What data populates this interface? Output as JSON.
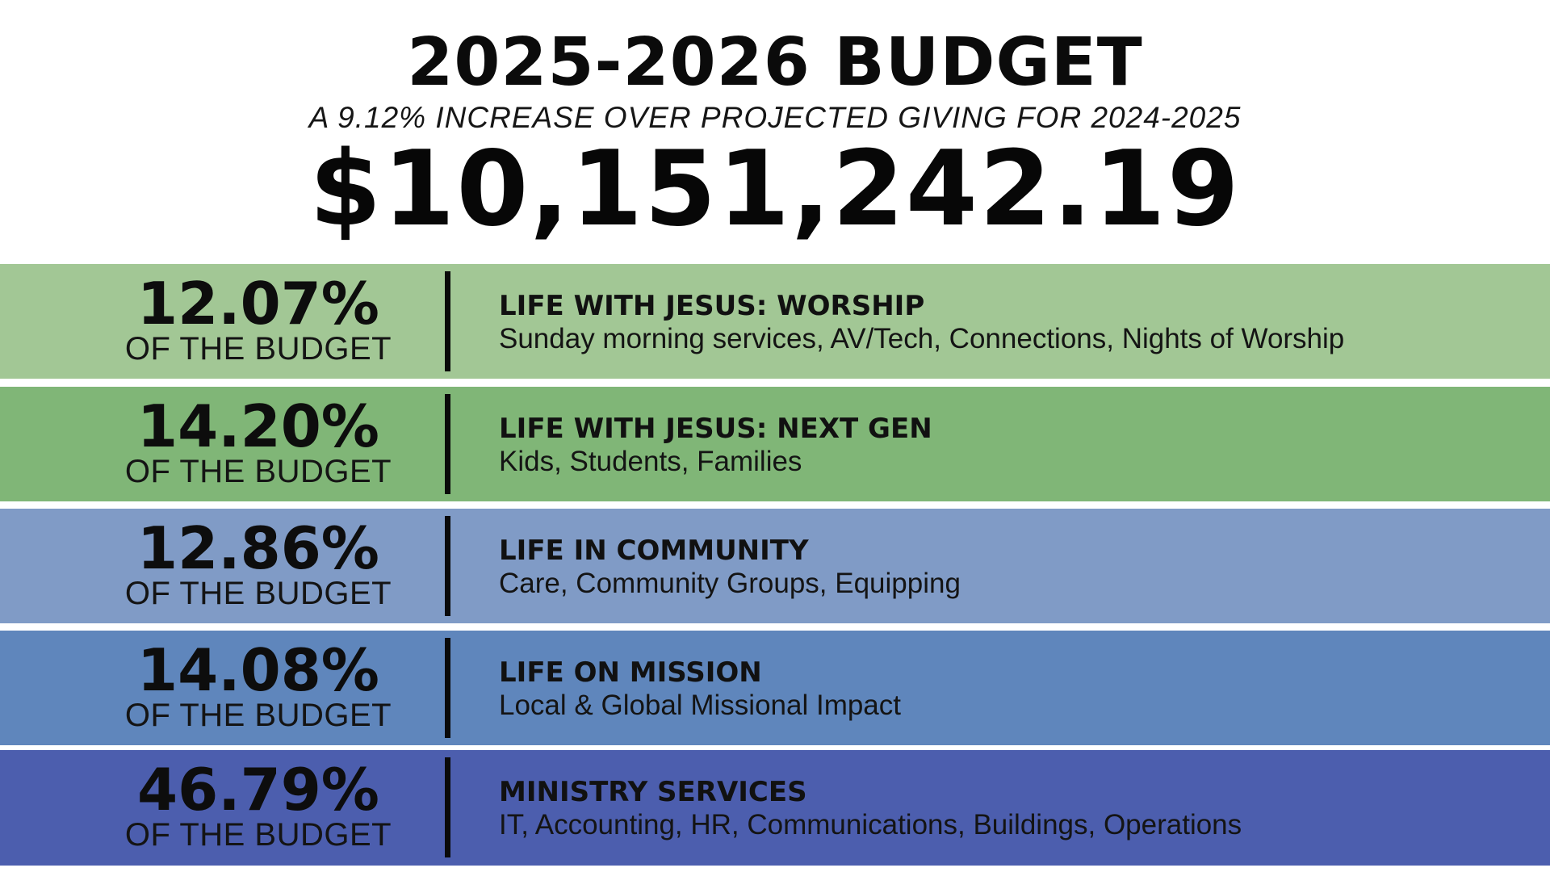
{
  "header": {
    "title": "2025-2026 BUDGET",
    "subtitle": "A 9.12% INCREASE OVER PROJECTED GIVING FOR 2024-2025",
    "total": "$10,151,242.19"
  },
  "colors": {
    "band_0": "#a2c795",
    "band_1": "#80b677",
    "band_2": "#809bc6",
    "band_3": "#5f86bc",
    "band_4": "#4c5eae"
  },
  "rows": [
    {
      "percent": "12.07%",
      "percent_label": "OF THE BUDGET",
      "name": "LIFE WITH JESUS: WORSHIP",
      "description": "Sunday morning services, AV/Tech, Connections, Nights of Worship"
    },
    {
      "percent": "14.20%",
      "percent_label": "OF THE BUDGET",
      "name": "LIFE WITH JESUS: NEXT GEN",
      "description": "Kids, Students, Families"
    },
    {
      "percent": "12.86%",
      "percent_label": "OF THE BUDGET",
      "name": "LIFE IN COMMUNITY",
      "description": "Care, Community Groups, Equipping"
    },
    {
      "percent": "14.08%",
      "percent_label": "OF THE BUDGET",
      "name": "LIFE ON MISSION",
      "description": "Local & Global Missional Impact"
    },
    {
      "percent": "46.79%",
      "percent_label": "OF THE BUDGET",
      "name": "MINISTRY SERVICES",
      "description": "IT, Accounting, HR, Communications, Buildings, Operations"
    }
  ]
}
